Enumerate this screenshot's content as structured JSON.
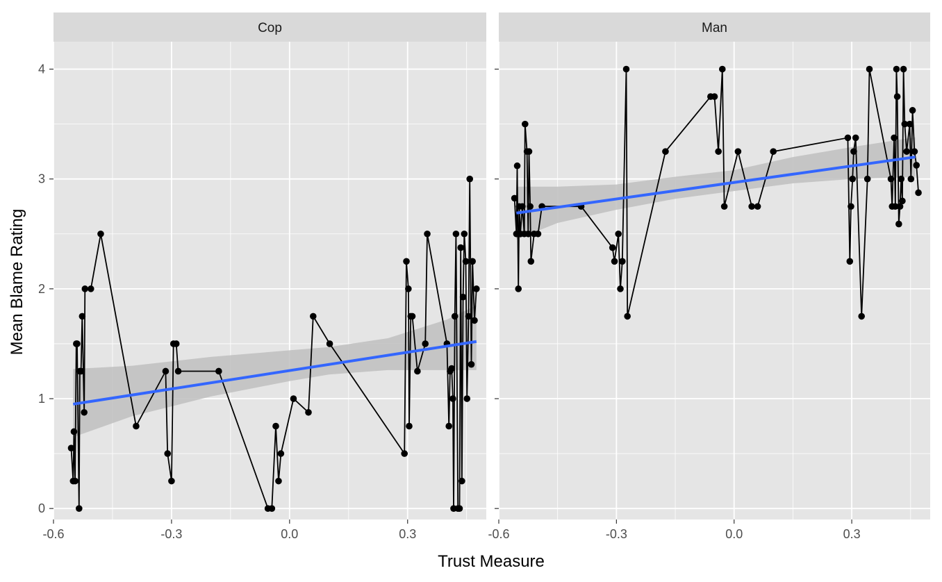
{
  "chart_data": {
    "type": "line",
    "xlabel": "Trust Measure",
    "ylabel": "Mean Blame Rating",
    "xlim": [
      -0.6,
      0.5
    ],
    "ylim": [
      -0.1,
      4.25
    ],
    "x_ticks": [
      -0.6,
      -0.3,
      0.0,
      0.3
    ],
    "x_tick_labels": [
      "-0.6",
      "-0.3",
      "0.0",
      "0.3"
    ],
    "y_ticks": [
      0,
      1,
      2,
      3,
      4
    ],
    "y_tick_labels": [
      "0",
      "1",
      "2",
      "3",
      "4"
    ],
    "grid": true,
    "colors": {
      "panel_bg": "#e5e5e5",
      "grid": "#ffffff",
      "strip_bg": "#d9d9d9",
      "points": "#000000",
      "fit_line": "#3366ff",
      "ribbon": "#bfbfbf"
    },
    "panels": [
      {
        "label": "Cop",
        "points": [
          [
            -0.555,
            0.55
          ],
          [
            -0.55,
            0.25
          ],
          [
            -0.548,
            0.7
          ],
          [
            -0.545,
            0.25
          ],
          [
            -0.542,
            1.5
          ],
          [
            -0.54,
            1.5
          ],
          [
            -0.535,
            0.0
          ],
          [
            -0.533,
            1.25
          ],
          [
            -0.53,
            1.25
          ],
          [
            -0.527,
            1.75
          ],
          [
            -0.522,
            0.875
          ],
          [
            -0.52,
            2.0
          ],
          [
            -0.505,
            2.0
          ],
          [
            -0.48,
            2.5
          ],
          [
            -0.39,
            0.75
          ],
          [
            -0.315,
            1.25
          ],
          [
            -0.31,
            0.5
          ],
          [
            -0.3,
            0.25
          ],
          [
            -0.295,
            1.5
          ],
          [
            -0.288,
            1.5
          ],
          [
            -0.283,
            1.25
          ],
          [
            -0.18,
            1.25
          ],
          [
            -0.055,
            0.0
          ],
          [
            -0.045,
            0.0
          ],
          [
            -0.035,
            0.75
          ],
          [
            -0.028,
            0.25
          ],
          [
            -0.022,
            0.5
          ],
          [
            0.01,
            1.0
          ],
          [
            0.048,
            0.875
          ],
          [
            0.06,
            1.75
          ],
          [
            0.102,
            1.5
          ],
          [
            0.292,
            0.5
          ],
          [
            0.297,
            2.25
          ],
          [
            0.302,
            2.0
          ],
          [
            0.304,
            0.75
          ],
          [
            0.308,
            1.75
          ],
          [
            0.312,
            1.75
          ],
          [
            0.325,
            1.25
          ],
          [
            0.345,
            1.5
          ],
          [
            0.35,
            2.5
          ],
          [
            0.4,
            1.5
          ],
          [
            0.405,
            0.75
          ],
          [
            0.408,
            1.25
          ],
          [
            0.412,
            1.275
          ],
          [
            0.415,
            1.0
          ],
          [
            0.417,
            0.0
          ],
          [
            0.42,
            1.75
          ],
          [
            0.423,
            2.5
          ],
          [
            0.428,
            0.0
          ],
          [
            0.432,
            0.0
          ],
          [
            0.435,
            2.375
          ],
          [
            0.438,
            0.25
          ],
          [
            0.441,
            1.925
          ],
          [
            0.444,
            2.5
          ],
          [
            0.448,
            2.25
          ],
          [
            0.451,
            1.0
          ],
          [
            0.455,
            1.75
          ],
          [
            0.458,
            3.0
          ],
          [
            0.462,
            1.312
          ],
          [
            0.465,
            2.25
          ],
          [
            0.47,
            1.712
          ],
          [
            0.475,
            2.0
          ]
        ],
        "fit": {
          "x0": -0.55,
          "y0": 0.95,
          "x1": 0.475,
          "y1": 1.52
        },
        "ribbon": [
          [
            -0.55,
            0.65,
            1.27
          ],
          [
            -0.4,
            0.84,
            1.3
          ],
          [
            -0.2,
            1.02,
            1.38
          ],
          [
            0.0,
            1.16,
            1.44
          ],
          [
            0.1,
            1.22,
            1.47
          ],
          [
            0.25,
            1.26,
            1.55
          ],
          [
            0.4,
            1.26,
            1.72
          ],
          [
            0.475,
            1.26,
            1.85
          ]
        ]
      },
      {
        "label": "Man",
        "points": [
          [
            -0.56,
            2.825
          ],
          [
            -0.555,
            2.5
          ],
          [
            -0.553,
            3.12
          ],
          [
            -0.55,
            2.0
          ],
          [
            -0.548,
            2.75
          ],
          [
            -0.545,
            2.5
          ],
          [
            -0.54,
            2.75
          ],
          [
            -0.535,
            2.5
          ],
          [
            -0.533,
            3.5
          ],
          [
            -0.528,
            3.25
          ],
          [
            -0.525,
            2.5
          ],
          [
            -0.523,
            3.25
          ],
          [
            -0.52,
            2.75
          ],
          [
            -0.518,
            2.25
          ],
          [
            -0.51,
            2.5
          ],
          [
            -0.5,
            2.5
          ],
          [
            -0.49,
            2.75
          ],
          [
            -0.39,
            2.75
          ],
          [
            -0.31,
            2.375
          ],
          [
            -0.305,
            2.25
          ],
          [
            -0.295,
            2.5
          ],
          [
            -0.29,
            2.0
          ],
          [
            -0.285,
            2.25
          ],
          [
            -0.275,
            4.0
          ],
          [
            -0.272,
            1.75
          ],
          [
            -0.175,
            3.25
          ],
          [
            -0.06,
            3.75
          ],
          [
            -0.05,
            3.75
          ],
          [
            -0.04,
            3.25
          ],
          [
            -0.03,
            4.0
          ],
          [
            -0.025,
            2.75
          ],
          [
            0.01,
            3.25
          ],
          [
            0.045,
            2.75
          ],
          [
            0.06,
            2.75
          ],
          [
            0.1,
            3.25
          ],
          [
            0.29,
            3.375
          ],
          [
            0.295,
            2.25
          ],
          [
            0.298,
            2.75
          ],
          [
            0.302,
            3.0
          ],
          [
            0.305,
            3.25
          ],
          [
            0.31,
            3.375
          ],
          [
            0.325,
            1.75
          ],
          [
            0.34,
            3.0
          ],
          [
            0.345,
            4.0
          ],
          [
            0.4,
            3.0
          ],
          [
            0.403,
            2.75
          ],
          [
            0.408,
            3.375
          ],
          [
            0.411,
            2.75
          ],
          [
            0.414,
            4.0
          ],
          [
            0.416,
            3.75
          ],
          [
            0.42,
            2.59
          ],
          [
            0.423,
            2.75
          ],
          [
            0.426,
            3.0
          ],
          [
            0.429,
            2.8
          ],
          [
            0.432,
            4.0
          ],
          [
            0.435,
            3.5
          ],
          [
            0.44,
            3.25
          ],
          [
            0.448,
            3.5
          ],
          [
            0.451,
            3.0
          ],
          [
            0.455,
            3.625
          ],
          [
            0.46,
            3.25
          ],
          [
            0.465,
            3.125
          ],
          [
            0.47,
            2.875
          ]
        ],
        "fit": {
          "x0": -0.555,
          "y0": 2.69,
          "x1": 0.462,
          "y1": 3.2
        },
        "ribbon": [
          [
            -0.555,
            2.45,
            2.93
          ],
          [
            -0.45,
            2.6,
            2.93
          ],
          [
            -0.3,
            2.72,
            2.95
          ],
          [
            -0.15,
            2.82,
            3.02
          ],
          [
            0.0,
            2.89,
            3.08
          ],
          [
            0.15,
            2.96,
            3.2
          ],
          [
            0.3,
            3.0,
            3.29
          ],
          [
            0.462,
            3.02,
            3.38
          ]
        ]
      }
    ]
  }
}
